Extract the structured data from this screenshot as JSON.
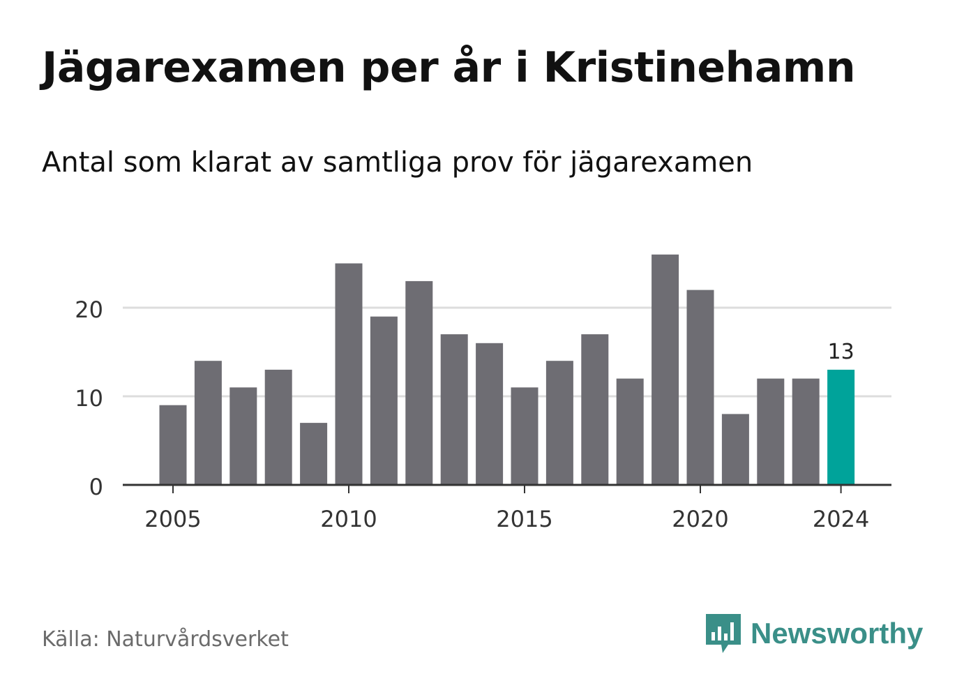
{
  "title": "Jägarexamen per år i Kristinehamn",
  "subtitle": "Antal som klarat av samtliga prov för jägarexamen",
  "source": "Källa: Naturvårdsverket",
  "brand": {
    "name": "Newsworthy",
    "icon": "newsworthy-logo-icon",
    "color": "#3a8f88"
  },
  "colors": {
    "bar": "#6e6d73",
    "highlight": "#00a39a",
    "grid": "#dddddd",
    "axis": "#333333"
  },
  "chart_data": {
    "type": "bar",
    "x": [
      2005,
      2006,
      2007,
      2008,
      2009,
      2010,
      2011,
      2012,
      2013,
      2014,
      2015,
      2016,
      2017,
      2018,
      2019,
      2020,
      2021,
      2022,
      2023,
      2024
    ],
    "values": [
      9,
      14,
      11,
      13,
      7,
      25,
      19,
      23,
      17,
      16,
      11,
      14,
      17,
      12,
      26,
      22,
      8,
      12,
      12,
      13
    ],
    "xticks": [
      2005,
      2010,
      2015,
      2020,
      2024
    ],
    "xtick_labels": [
      "2005",
      "2010",
      "2015",
      "2020",
      "2024"
    ],
    "yticks": [
      0,
      10,
      20
    ],
    "ytick_labels": [
      "0",
      "10",
      "20"
    ],
    "ylim": [
      0,
      27
    ],
    "grid": true,
    "highlight": {
      "x": 2024,
      "label": "13"
    }
  }
}
